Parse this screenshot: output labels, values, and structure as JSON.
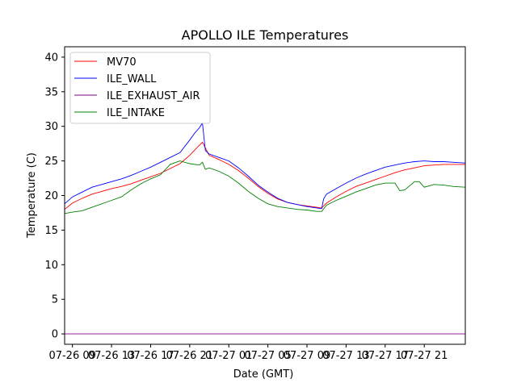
{
  "chart_data": {
    "type": "line",
    "title": "APOLLO ILE Temperatures",
    "xlabel": "Date (GMT)",
    "ylabel": "Temperature (C)",
    "x_unit": "hours since 07-26 09:00 GMT",
    "xlim": [
      -0.8,
      40.2
    ],
    "ylim": [
      -1.5,
      41.5
    ],
    "grid": false,
    "legend_position": "top-left",
    "x_ticks": [
      {
        "x": 0,
        "label": "07-26 09"
      },
      {
        "x": 4,
        "label": "07-26 13"
      },
      {
        "x": 8,
        "label": "07-26 17"
      },
      {
        "x": 12,
        "label": "07-26 21"
      },
      {
        "x": 16,
        "label": "07-27 01"
      },
      {
        "x": 20,
        "label": "07-27 05"
      },
      {
        "x": 24,
        "label": "07-27 09"
      },
      {
        "x": 28,
        "label": "07-27 13"
      },
      {
        "x": 32,
        "label": "07-27 17"
      },
      {
        "x": 36,
        "label": "07-27 21"
      }
    ],
    "y_ticks": [
      0,
      5,
      10,
      15,
      20,
      25,
      30,
      35,
      40
    ],
    "series": [
      {
        "name": "MV70",
        "color": "#ff0000",
        "x": [
          -0.8,
          0,
          1,
          2,
          3,
          4,
          5,
          6,
          7,
          8,
          9,
          10,
          11,
          12,
          12.8,
          13.3,
          14,
          15,
          16,
          17,
          18,
          19,
          20,
          21,
          22,
          23,
          24,
          25,
          25.5,
          26,
          27,
          28,
          29,
          30,
          31,
          32,
          33,
          34,
          35,
          36,
          37,
          38,
          39,
          40.2
        ],
        "y": [
          18.0,
          18.9,
          19.6,
          20.2,
          20.6,
          21.0,
          21.3,
          21.7,
          22.2,
          22.7,
          23.2,
          23.9,
          24.6,
          25.8,
          27.0,
          27.7,
          25.8,
          25.2,
          24.5,
          23.6,
          22.5,
          21.3,
          20.3,
          19.5,
          19.0,
          18.7,
          18.5,
          18.3,
          18.2,
          18.9,
          19.8,
          20.6,
          21.3,
          21.8,
          22.3,
          22.8,
          23.3,
          23.7,
          24.0,
          24.3,
          24.4,
          24.5,
          24.5,
          24.5
        ]
      },
      {
        "name": "ILE_WALL",
        "color": "#0000ff",
        "x": [
          -0.8,
          0,
          1,
          2,
          3,
          4,
          5,
          6,
          7,
          8,
          9,
          10,
          11,
          12,
          12.5,
          13,
          13.3,
          13.6,
          14,
          15,
          16,
          17,
          18,
          19,
          20,
          21,
          22,
          23,
          24,
          25,
          25.5,
          25.7,
          26,
          27,
          28,
          29,
          30,
          31,
          32,
          33,
          34,
          35,
          36,
          37,
          38,
          39,
          40.2
        ],
        "y": [
          18.8,
          19.8,
          20.5,
          21.2,
          21.6,
          22.0,
          22.4,
          22.9,
          23.5,
          24.1,
          24.8,
          25.5,
          26.2,
          28.0,
          29.0,
          29.8,
          30.5,
          26.5,
          26.0,
          25.5,
          25.0,
          24.0,
          22.8,
          21.5,
          20.5,
          19.6,
          19.0,
          18.7,
          18.4,
          18.2,
          18.1,
          19.5,
          20.2,
          21.0,
          21.8,
          22.5,
          23.1,
          23.6,
          24.1,
          24.4,
          24.7,
          24.9,
          25.0,
          24.9,
          24.9,
          24.8,
          24.7
        ]
      },
      {
        "name": "ILE_EXHAUST_AIR",
        "color": "#800080",
        "x": [
          -0.8,
          40.2
        ],
        "y": [
          0.0,
          0.0
        ]
      },
      {
        "name": "ILE_INTAKE",
        "color": "#008000",
        "x": [
          -0.8,
          0,
          1,
          2,
          3,
          4,
          5,
          6,
          7,
          8,
          9,
          10,
          11,
          12,
          13,
          13.3,
          13.6,
          14,
          15,
          16,
          17,
          18,
          19,
          20,
          21,
          22,
          23,
          24,
          25,
          25.5,
          26,
          27,
          28,
          29,
          30,
          31,
          32,
          33,
          33.5,
          34,
          35,
          35.5,
          36,
          37,
          38,
          39,
          40.2
        ],
        "y": [
          17.4,
          17.6,
          17.8,
          18.3,
          18.8,
          19.3,
          19.8,
          20.8,
          21.7,
          22.4,
          23.0,
          24.5,
          25.0,
          24.6,
          24.4,
          24.8,
          23.8,
          24.0,
          23.5,
          22.8,
          21.8,
          20.6,
          19.6,
          18.8,
          18.4,
          18.2,
          18.0,
          17.9,
          17.7,
          17.7,
          18.6,
          19.3,
          19.9,
          20.5,
          21.0,
          21.5,
          21.8,
          21.8,
          20.7,
          20.8,
          22.0,
          22.0,
          21.2,
          21.6,
          21.5,
          21.3,
          21.2
        ]
      }
    ]
  }
}
